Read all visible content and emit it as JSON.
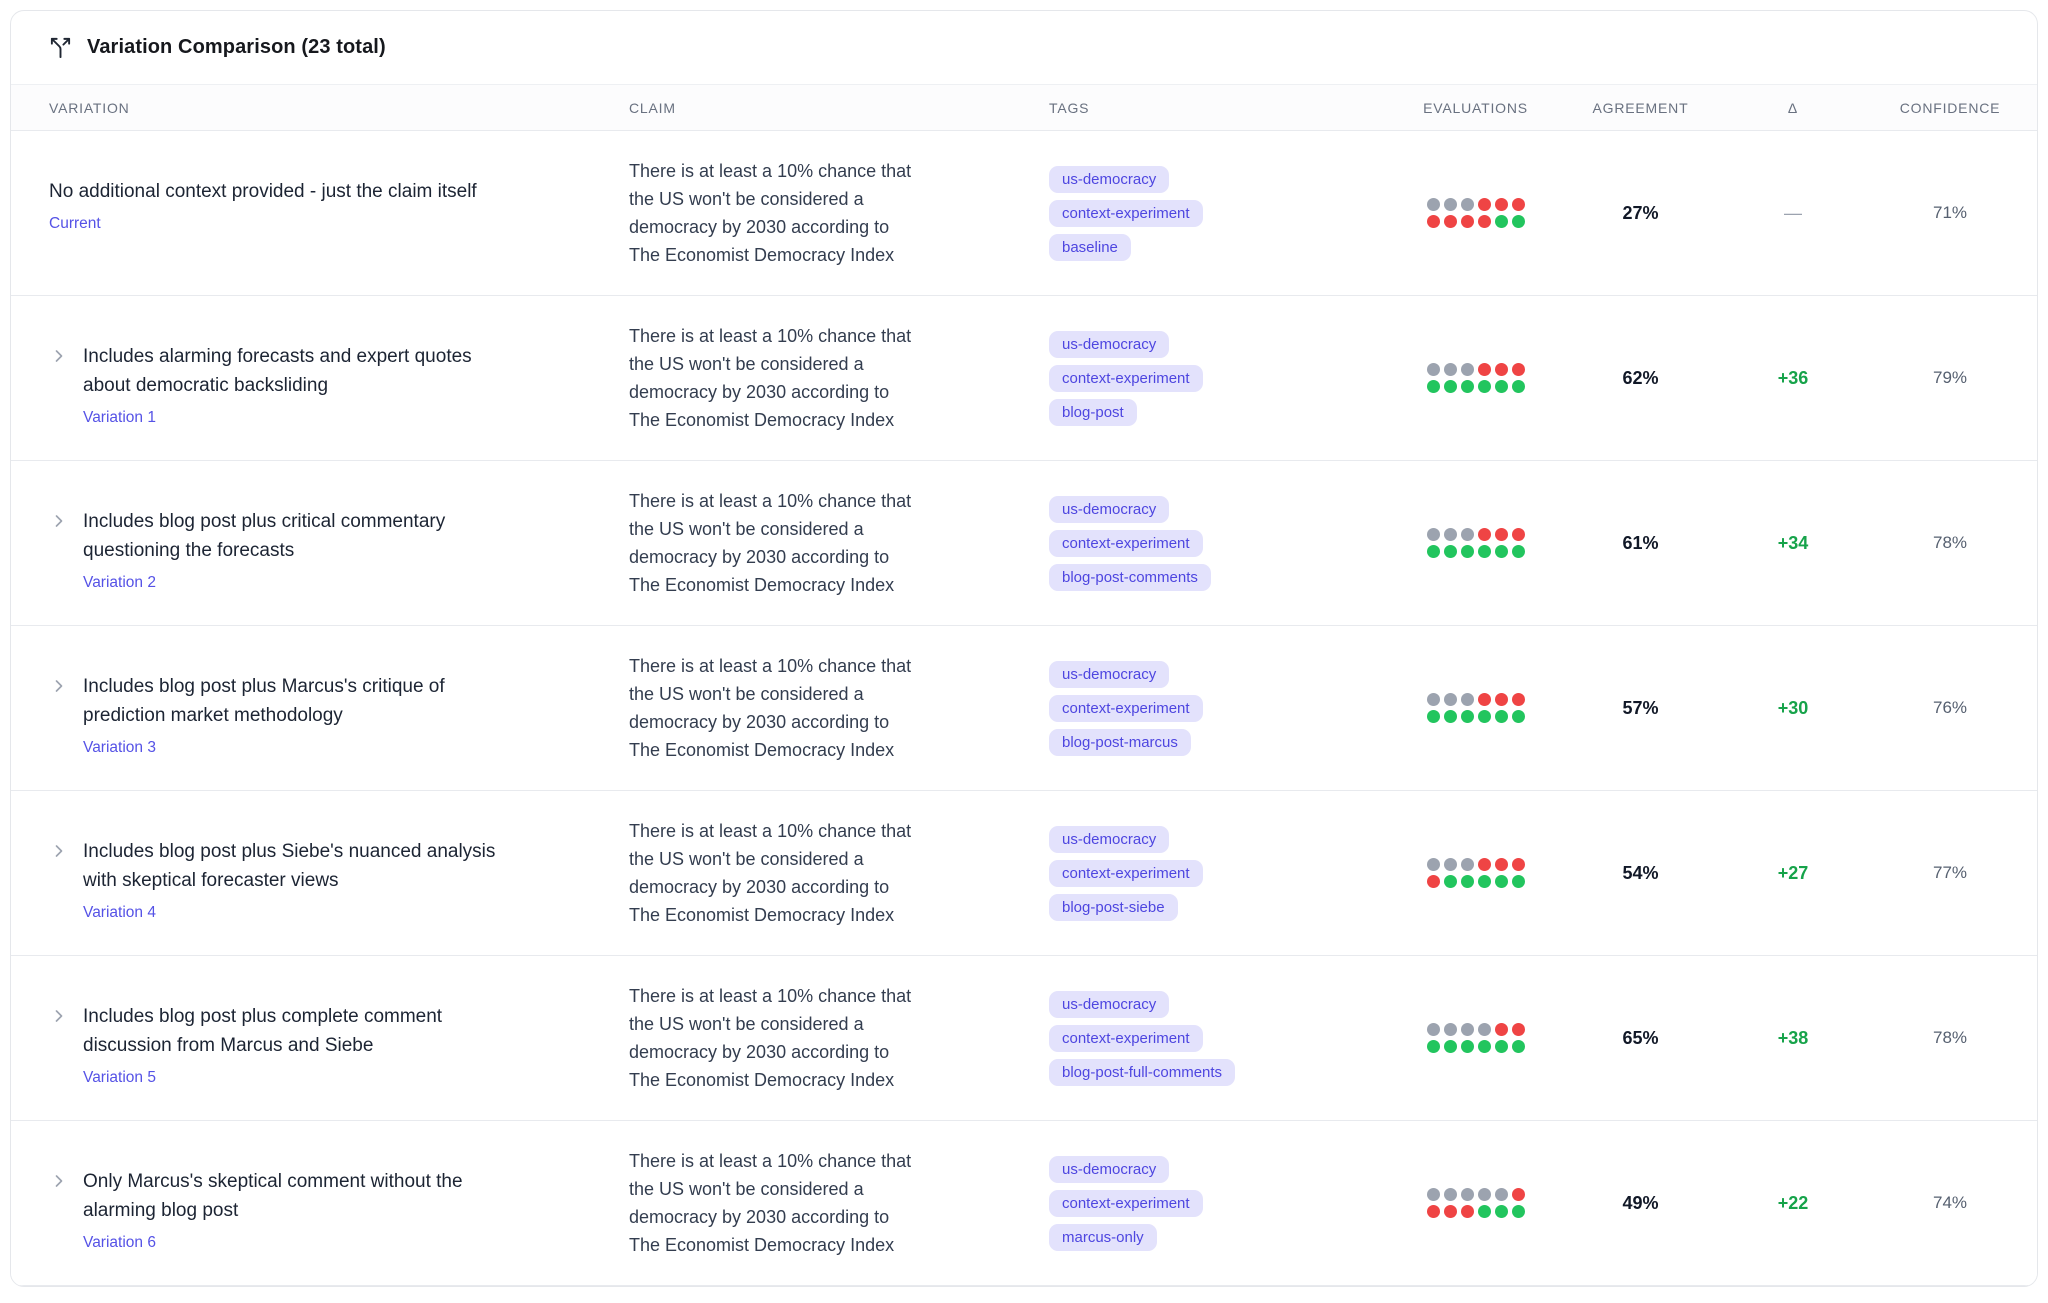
{
  "header": {
    "title": "Variation Comparison (23 total)",
    "icon": "split-branch-icon"
  },
  "columns": {
    "variation": "VARIATION",
    "claim": "CLAIM",
    "tags": "TAGS",
    "evaluations": "EVALUATIONS",
    "agreement": "AGREEMENT",
    "delta": "Δ",
    "confidence": "CONFIDENCE"
  },
  "colors": {
    "accent_indigo": "#4e46e0",
    "tag_background": "#e3e2fc",
    "dot_gray": "#9ca3af",
    "dot_red": "#ef4444",
    "dot_green": "#22c55e",
    "delta_positive_green": "#16a34a"
  },
  "rows": [
    {
      "title": "No additional context provided - just the claim itself",
      "label": "Current",
      "expandable": false,
      "claim": "There is at least a 10% chance that the US won't be considered a democracy by 2030 according to The Economist Democracy Index",
      "tags": [
        "us-democracy",
        "context-experiment",
        "baseline"
      ],
      "evaluations": [
        "gray",
        "gray",
        "gray",
        "red",
        "red",
        "red",
        "red",
        "red",
        "red",
        "red",
        "green",
        "green"
      ],
      "agreement": "27%",
      "delta": "—",
      "confidence": "71%"
    },
    {
      "title": "Includes alarming forecasts and expert quotes about democratic backsliding",
      "label": "Variation 1",
      "expandable": true,
      "claim": "There is at least a 10% chance that the US won't be considered a democracy by 2030 according to The Economist Democracy Index",
      "tags": [
        "us-democracy",
        "context-experiment",
        "blog-post"
      ],
      "evaluations": [
        "gray",
        "gray",
        "gray",
        "red",
        "red",
        "red",
        "green",
        "green",
        "green",
        "green",
        "green",
        "green"
      ],
      "agreement": "62%",
      "delta": "+36",
      "confidence": "79%"
    },
    {
      "title": "Includes blog post plus critical commentary questioning the forecasts",
      "label": "Variation 2",
      "expandable": true,
      "claim": "There is at least a 10% chance that the US won't be considered a democracy by 2030 according to The Economist Democracy Index",
      "tags": [
        "us-democracy",
        "context-experiment",
        "blog-post-comments"
      ],
      "evaluations": [
        "gray",
        "gray",
        "gray",
        "red",
        "red",
        "red",
        "green",
        "green",
        "green",
        "green",
        "green",
        "green"
      ],
      "agreement": "61%",
      "delta": "+34",
      "confidence": "78%"
    },
    {
      "title": "Includes blog post plus Marcus's critique of prediction market methodology",
      "label": "Variation 3",
      "expandable": true,
      "claim": "There is at least a 10% chance that the US won't be considered a democracy by 2030 according to The Economist Democracy Index",
      "tags": [
        "us-democracy",
        "context-experiment",
        "blog-post-marcus"
      ],
      "evaluations": [
        "gray",
        "gray",
        "gray",
        "red",
        "red",
        "red",
        "green",
        "green",
        "green",
        "green",
        "green",
        "green"
      ],
      "agreement": "57%",
      "delta": "+30",
      "confidence": "76%"
    },
    {
      "title": "Includes blog post plus Siebe's nuanced analysis with skeptical forecaster views",
      "label": "Variation 4",
      "expandable": true,
      "claim": "There is at least a 10% chance that the US won't be considered a democracy by 2030 according to The Economist Democracy Index",
      "tags": [
        "us-democracy",
        "context-experiment",
        "blog-post-siebe"
      ],
      "evaluations": [
        "gray",
        "gray",
        "gray",
        "red",
        "red",
        "red",
        "red",
        "green",
        "green",
        "green",
        "green",
        "green"
      ],
      "agreement": "54%",
      "delta": "+27",
      "confidence": "77%"
    },
    {
      "title": "Includes blog post plus complete comment discussion from Marcus and Siebe",
      "label": "Variation 5",
      "expandable": true,
      "claim": "There is at least a 10% chance that the US won't be considered a democracy by 2030 according to The Economist Democracy Index",
      "tags": [
        "us-democracy",
        "context-experiment",
        "blog-post-full-comments"
      ],
      "evaluations": [
        "gray",
        "gray",
        "gray",
        "gray",
        "red",
        "red",
        "green",
        "green",
        "green",
        "green",
        "green",
        "green"
      ],
      "agreement": "65%",
      "delta": "+38",
      "confidence": "78%"
    },
    {
      "title": "Only Marcus's skeptical comment without the alarming blog post",
      "label": "Variation 6",
      "expandable": true,
      "claim": "There is at least a 10% chance that the US won't be considered a democracy by 2030 according to The Economist Democracy Index",
      "tags": [
        "us-democracy",
        "context-experiment",
        "marcus-only"
      ],
      "evaluations": [
        "gray",
        "gray",
        "gray",
        "gray",
        "gray",
        "red",
        "red",
        "red",
        "red",
        "green",
        "green",
        "green"
      ],
      "agreement": "49%",
      "delta": "+22",
      "confidence": "74%"
    }
  ]
}
